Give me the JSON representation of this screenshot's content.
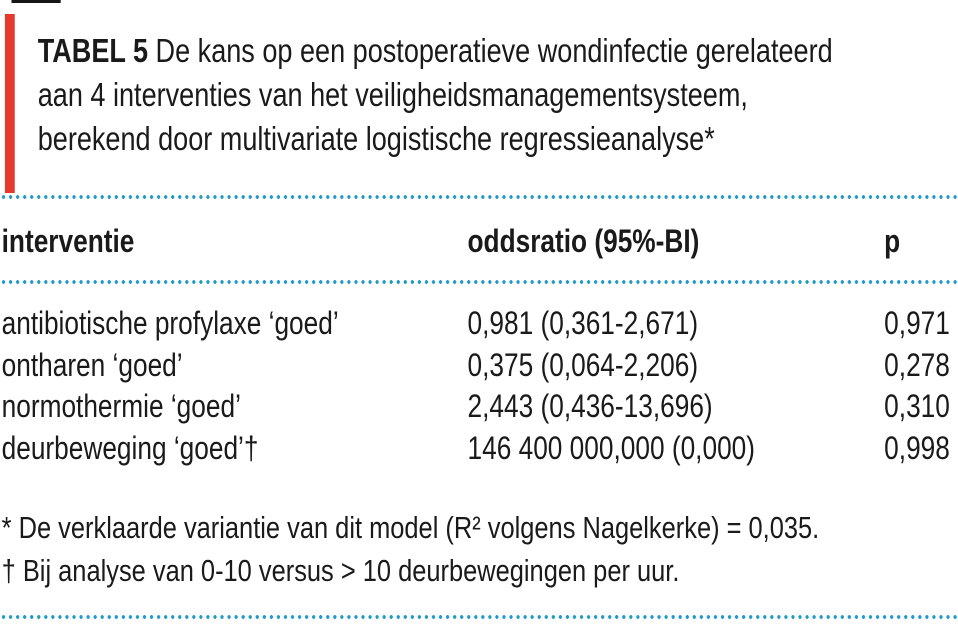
{
  "colors": {
    "red_bar": "#e5392e",
    "dotted_line_blue": "#2199c9",
    "text": "#1a1a1a"
  },
  "title": {
    "label": "TABEL 5",
    "lines": [
      "De kans op een postoperatieve wondinfectie gerelateerd",
      "aan 4 interventies van het veiligheidsmanagementsysteem,",
      "berekend door multivariate logistische regressieanalyse*"
    ]
  },
  "table": {
    "headers": {
      "interventie": "interventie",
      "oddsratio": "oddsratio (95%-BI)",
      "p": "p"
    },
    "rows": [
      {
        "interventie": "antibiotische profylaxe ‘goed’",
        "oddsratio": "0,981 (0,361-2,671)",
        "p": "0,971"
      },
      {
        "interventie": "ontharen ‘goed’",
        "oddsratio": "0,375 (0,064-2,206)",
        "p": "0,278"
      },
      {
        "interventie": "normothermie ‘goed’",
        "oddsratio": "2,443 (0,436-13,696)",
        "p": "0,310"
      },
      {
        "interventie": "deurbeweging ‘goed’†",
        "oddsratio": "146 400 000,000 (0,000)",
        "p": "0,998"
      }
    ]
  },
  "footnotes": [
    "* De verklaarde variantie van dit model (R² volgens Nagelkerke) = 0,035.",
    "† Bij analyse van 0-10 versus > 10 deurbewegingen per uur."
  ]
}
